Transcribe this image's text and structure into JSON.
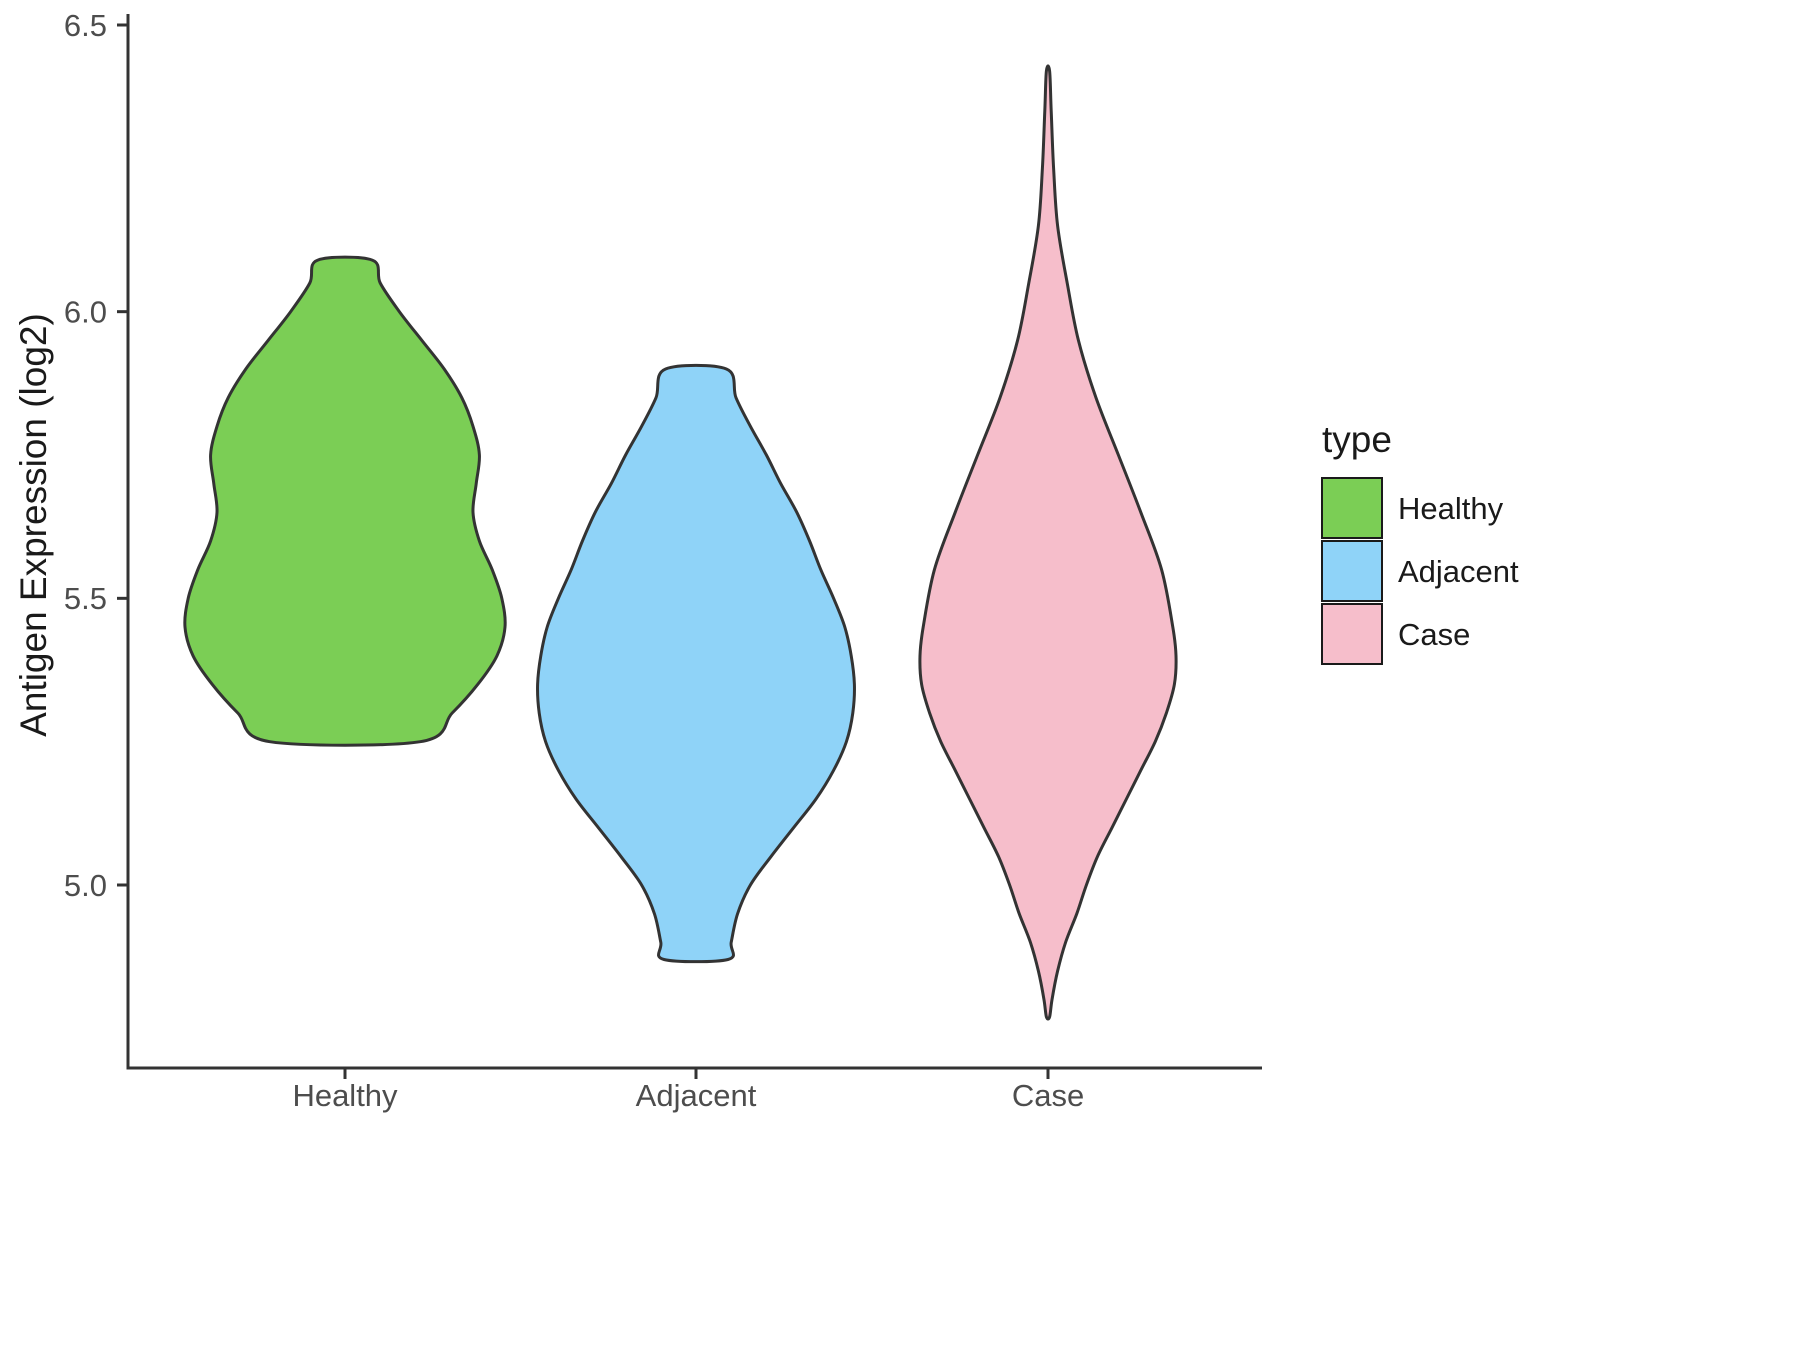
{
  "page": {
    "background": "#ffffff"
  },
  "chart_data": {
    "type": "violin",
    "title": "",
    "xlabel": "",
    "ylabel": "Antigen Expression (log2)",
    "categories": [
      "Healthy",
      "Adjacent",
      "Case"
    ],
    "y_axis": {
      "min": 5.0,
      "max": 6.5,
      "tick_values": [
        6.5,
        6.0,
        5.5,
        5.0
      ],
      "tick_labels": [
        "6.5",
        "6.0",
        "5.5",
        "5.0"
      ]
    },
    "grid": "off",
    "legend_position": "right",
    "legend": {
      "title": "type",
      "entries": [
        {
          "label": "Healthy",
          "color": "#7BCE55"
        },
        {
          "label": "Adjacent",
          "color": "#8FD3F8"
        },
        {
          "label": "Case",
          "color": "#F6BECB"
        }
      ]
    },
    "outline_color": "#333333",
    "series": [
      {
        "name": "Healthy",
        "color": "#7BCE55",
        "range": [
          5.25,
          6.09
        ],
        "profile": [
          [
            6.09,
            0.17
          ],
          [
            6.05,
            0.22
          ],
          [
            6.0,
            0.34
          ],
          [
            5.95,
            0.48
          ],
          [
            5.9,
            0.62
          ],
          [
            5.85,
            0.73
          ],
          [
            5.8,
            0.8
          ],
          [
            5.75,
            0.84
          ],
          [
            5.7,
            0.82
          ],
          [
            5.65,
            0.8
          ],
          [
            5.6,
            0.84
          ],
          [
            5.55,
            0.92
          ],
          [
            5.5,
            0.98
          ],
          [
            5.45,
            1.0
          ],
          [
            5.4,
            0.95
          ],
          [
            5.35,
            0.83
          ],
          [
            5.3,
            0.67
          ],
          [
            5.25,
            0.47
          ]
        ]
      },
      {
        "name": "Adjacent",
        "color": "#8FD3F8",
        "range": [
          4.87,
          5.9
        ],
        "profile": [
          [
            5.9,
            0.19
          ],
          [
            5.85,
            0.25
          ],
          [
            5.8,
            0.34
          ],
          [
            5.75,
            0.44
          ],
          [
            5.7,
            0.53
          ],
          [
            5.65,
            0.63
          ],
          [
            5.6,
            0.71
          ],
          [
            5.55,
            0.78
          ],
          [
            5.5,
            0.86
          ],
          [
            5.45,
            0.93
          ],
          [
            5.4,
            0.97
          ],
          [
            5.35,
            0.99
          ],
          [
            5.3,
            0.98
          ],
          [
            5.25,
            0.94
          ],
          [
            5.2,
            0.86
          ],
          [
            5.15,
            0.75
          ],
          [
            5.1,
            0.61
          ],
          [
            5.05,
            0.47
          ],
          [
            5.0,
            0.34
          ],
          [
            4.95,
            0.26
          ],
          [
            4.9,
            0.22
          ],
          [
            4.87,
            0.2
          ]
        ]
      },
      {
        "name": "Case",
        "color": "#F6BECB",
        "range": [
          4.77,
          6.42
        ],
        "profile": [
          [
            6.42,
            0.01
          ],
          [
            6.35,
            0.02
          ],
          [
            6.25,
            0.035
          ],
          [
            6.15,
            0.06
          ],
          [
            6.05,
            0.12
          ],
          [
            5.95,
            0.19
          ],
          [
            5.85,
            0.3
          ],
          [
            5.75,
            0.44
          ],
          [
            5.65,
            0.58
          ],
          [
            5.55,
            0.71
          ],
          [
            5.45,
            0.78
          ],
          [
            5.4,
            0.8
          ],
          [
            5.35,
            0.79
          ],
          [
            5.3,
            0.74
          ],
          [
            5.25,
            0.67
          ],
          [
            5.2,
            0.58
          ],
          [
            5.15,
            0.49
          ],
          [
            5.1,
            0.4
          ],
          [
            5.05,
            0.31
          ],
          [
            5.0,
            0.24
          ],
          [
            4.95,
            0.18
          ],
          [
            4.9,
            0.11
          ],
          [
            4.85,
            0.06
          ],
          [
            4.8,
            0.025
          ],
          [
            4.77,
            0.01
          ]
        ]
      }
    ]
  }
}
